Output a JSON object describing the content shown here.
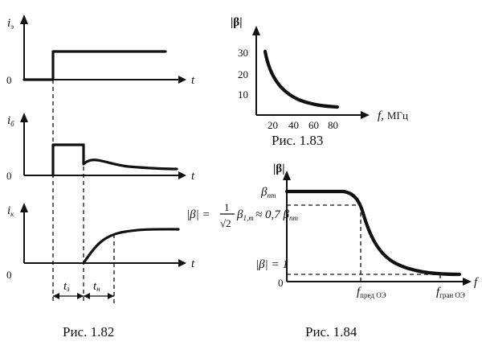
{
  "fig182": {
    "caption": "Рис. 1.82",
    "y_labels": [
      "i",
      "i",
      "i"
    ],
    "y_subs": [
      "э",
      "б",
      "к"
    ],
    "zero_labels": [
      "0",
      "0",
      "0"
    ],
    "t_labels": [
      "t",
      "t",
      "t"
    ],
    "t_s": "t",
    "t_s_sub": "з",
    "t_n": "t",
    "t_n_sub": "н"
  },
  "fig183": {
    "caption": "Рис. 1.83",
    "ylabel": "|β|",
    "xlabel_var": "f,",
    "xlabel_unit": "МГц",
    "yticks": [
      "30",
      "20",
      "10"
    ],
    "xticks": [
      "20",
      "40",
      "60",
      "80"
    ]
  },
  "fig184": {
    "caption": "Рис. 1.84",
    "ylabel": "|β|",
    "beta_label": "β",
    "beta_sub": "пт",
    "formula_left": "|β| =",
    "formula_num": "1",
    "formula_den": "√2",
    "formula_right": "β",
    "formula_right_sub": "1,т",
    "formula_tail": "≈ 0,7 β",
    "formula_tail_sub": "пт",
    "unity": "|β| = 1",
    "zero": "0",
    "f_axis": "f",
    "f_pred": "f",
    "f_pred_sub": "пред ОЭ",
    "f_gran": "f",
    "f_gran_sub": "гран ОЭ"
  }
}
